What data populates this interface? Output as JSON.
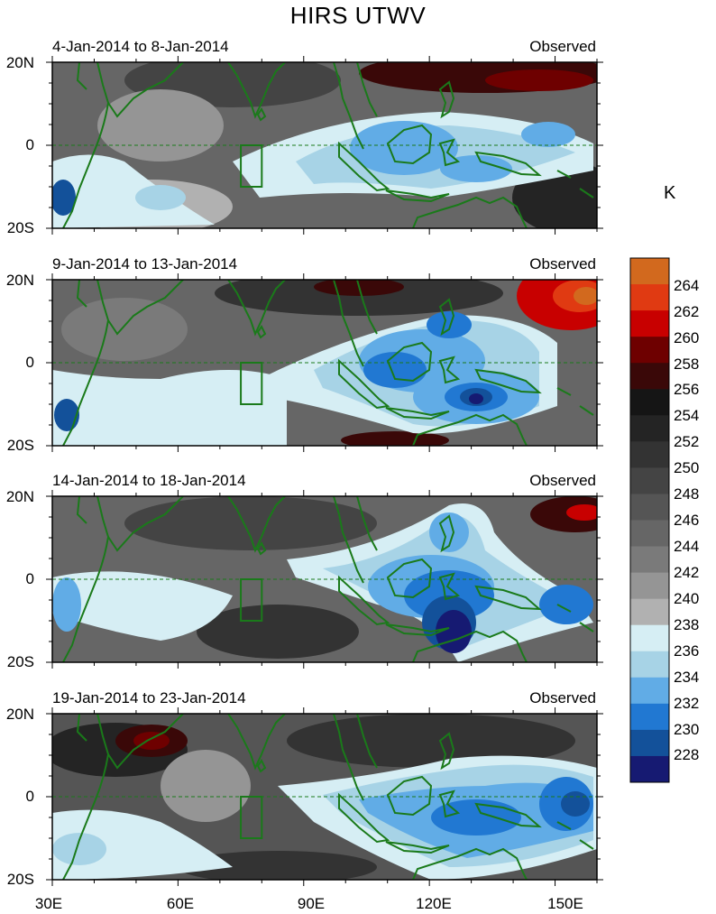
{
  "title": "HIRS UTWV",
  "unit": "K",
  "panels": [
    {
      "left_title": "4-Jan-2014 to 8-Jan-2014",
      "right_title": "Observed"
    },
    {
      "left_title": "9-Jan-2014 to 13-Jan-2014",
      "right_title": "Observed"
    },
    {
      "left_title": "14-Jan-2014 to 18-Jan-2014",
      "right_title": "Observed"
    },
    {
      "left_title": "19-Jan-2014 to 23-Jan-2014",
      "right_title": "Observed"
    }
  ],
  "y_ticks": [
    "20N",
    "0",
    "20S"
  ],
  "x_ticks": [
    "30E",
    "60E",
    "90E",
    "120E",
    "150E"
  ],
  "colorbar": {
    "labels": [
      "264",
      "262",
      "260",
      "258",
      "256",
      "254",
      "252",
      "250",
      "248",
      "246",
      "244",
      "242",
      "240",
      "238",
      "236",
      "234",
      "232",
      "230",
      "228"
    ],
    "colors": [
      "#d2691e",
      "#e03a12",
      "#c80000",
      "#6e0000",
      "#3a0808",
      "#151515",
      "#242424",
      "#333333",
      "#444444",
      "#555555",
      "#666666",
      "#7a7a7a",
      "#959595",
      "#b1b1b1",
      "#d6eef4",
      "#a7d3e6",
      "#61ace6",
      "#2178d2",
      "#13519a",
      "#161a72"
    ]
  },
  "map": {
    "lon_range": [
      30,
      160
    ],
    "lat_range": [
      -20,
      20
    ],
    "box_region": {
      "lon": [
        75,
        80
      ],
      "lat": [
        -10,
        0
      ]
    },
    "coastline_color": "#1a7a1a"
  }
}
